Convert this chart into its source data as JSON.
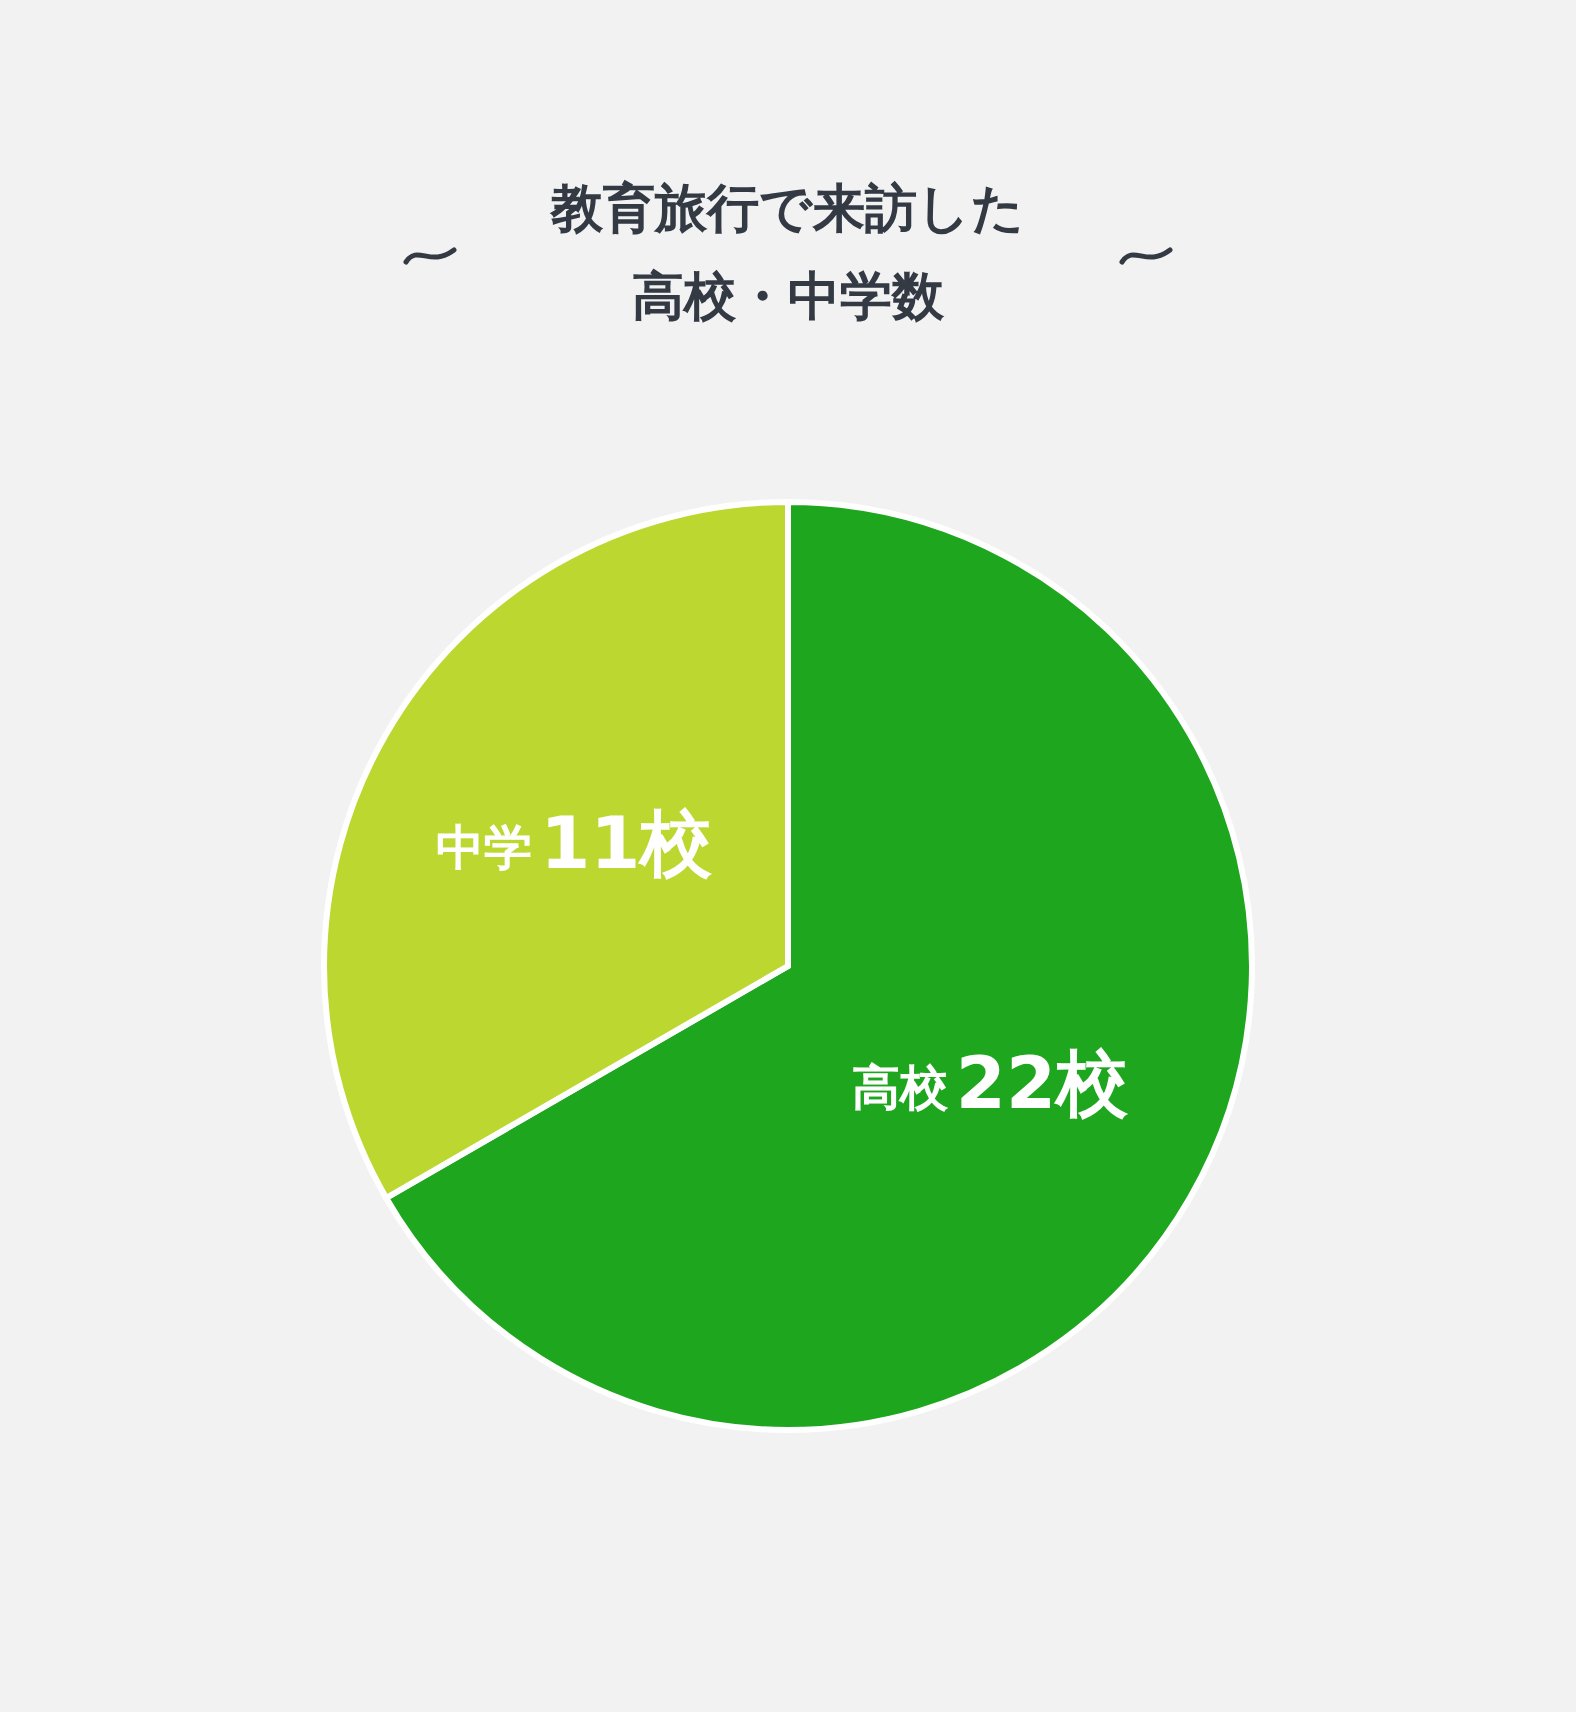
{
  "chart_data": {
    "type": "pie",
    "title": "教育旅行で来訪した高校・中学数",
    "categories": [
      "高校",
      "中学"
    ],
    "values": [
      22,
      11
    ],
    "colors": [
      "#1fa61f",
      "#bcd830"
    ],
    "value_labels": [
      "22校",
      "11校"
    ],
    "legend": false
  }
}
